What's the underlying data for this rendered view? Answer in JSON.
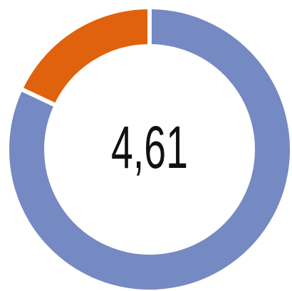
{
  "chart_data": {
    "type": "donut",
    "categories": [
      null,
      null
    ],
    "series": [
      {
        "name": null,
        "values": [
          82,
          18
        ],
        "colors": [
          "#7589c2",
          "#e0620d"
        ]
      }
    ],
    "center_label": "4,61",
    "start_angle": 0,
    "direction": "clockwise"
  }
}
